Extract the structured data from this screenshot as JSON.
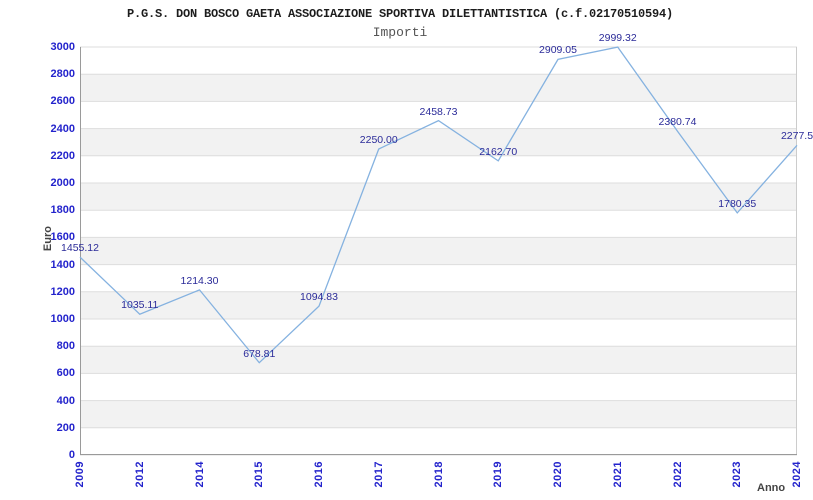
{
  "header": {
    "title": "P.G.S. DON BOSCO GAETA ASSOCIAZIONE SPORTIVA DILETTANTISTICA (c.f.02170510594)",
    "subtitle": "Importi"
  },
  "chart_data": {
    "type": "line",
    "title": "Importi",
    "categories": [
      "2009",
      "2012",
      "2014",
      "2015",
      "2016",
      "2017",
      "2018",
      "2019",
      "2020",
      "2021",
      "2022",
      "2023",
      "2024"
    ],
    "values": [
      1455.12,
      1035.11,
      1214.3,
      678.81,
      1094.83,
      2250.0,
      2458.73,
      2162.7,
      2909.05,
      2999.32,
      2380.74,
      1780.35,
      2277.5
    ],
    "point_labels": [
      "1455.12",
      "1035.11",
      "1214.30",
      "678.81",
      "1094.83",
      "2250.00",
      "2458.73",
      "2162.70",
      "2909.05",
      "2999.32",
      "2380.74",
      "1780.35",
      "2277.5"
    ],
    "xlabel": "Anno",
    "ylabel": "Euro",
    "ylim": [
      0,
      3000
    ],
    "ytick_step": 200,
    "grid": true,
    "legend": "none",
    "background_bands": "alternating",
    "colors": {
      "line": "#85b2e0",
      "tick_label": "#2323cc",
      "point_label": "#2b2b99",
      "band": "#f2f2f2",
      "gridline": "#dddddd",
      "axis": "#9a9a9a",
      "right_border": "#cccccc",
      "title": "#1c1c1c",
      "subtitle": "#555555",
      "axis_title": "#444444"
    }
  }
}
